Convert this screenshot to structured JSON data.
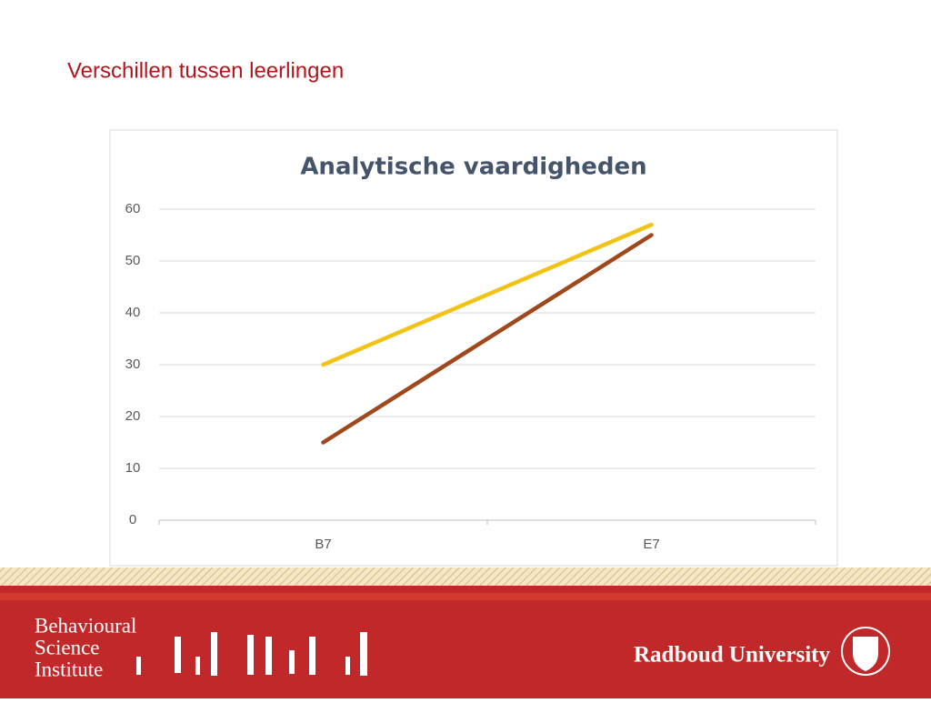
{
  "slide_title": "Verschillen tussen leerlingen",
  "chart_data": {
    "type": "line",
    "title": "Analytische vaardigheden",
    "categories": [
      "B7",
      "E7"
    ],
    "series": [
      {
        "color": "#f2c314",
        "values": [
          30,
          57
        ]
      },
      {
        "color": "#a0471c",
        "values": [
          15,
          55
        ]
      }
    ],
    "ylim": [
      0,
      60
    ],
    "yticks": [
      0,
      10,
      20,
      30,
      40,
      50,
      60
    ],
    "grid": true
  },
  "footer": {
    "institute": [
      "Behavioural",
      "Science",
      "Institute"
    ],
    "university": "Radboud University"
  }
}
